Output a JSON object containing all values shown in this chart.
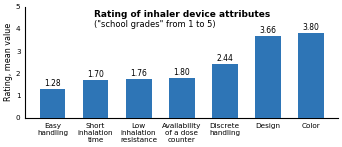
{
  "title_line1": "Rating of inhaler device attributes",
  "title_line2": "(\"school grades\" from 1 to 5)",
  "categories": [
    "Easy\nhandling",
    "Short\ninhalation\ntime",
    "Low\ninhalation\nresistance",
    "Availability\nof a dose\ncounter",
    "Discrete\nhandling",
    "Design",
    "Color"
  ],
  "values": [
    1.28,
    1.7,
    1.76,
    1.8,
    2.44,
    3.66,
    3.8
  ],
  "bar_color": "#2E75B6",
  "ylabel": "Rating, mean value",
  "ylim": [
    0,
    5
  ],
  "yticks": [
    0,
    1,
    2,
    3,
    4,
    5
  ],
  "value_labels": [
    "1.28",
    "1.70",
    "1.76",
    "1.80",
    "2.44",
    "3.66",
    "3.80"
  ],
  "background_color": "#ffffff",
  "title_fontsize": 6.5,
  "subtitle_fontsize": 6.0,
  "label_fontsize": 5.2,
  "value_fontsize": 5.5,
  "ylabel_fontsize": 5.8
}
